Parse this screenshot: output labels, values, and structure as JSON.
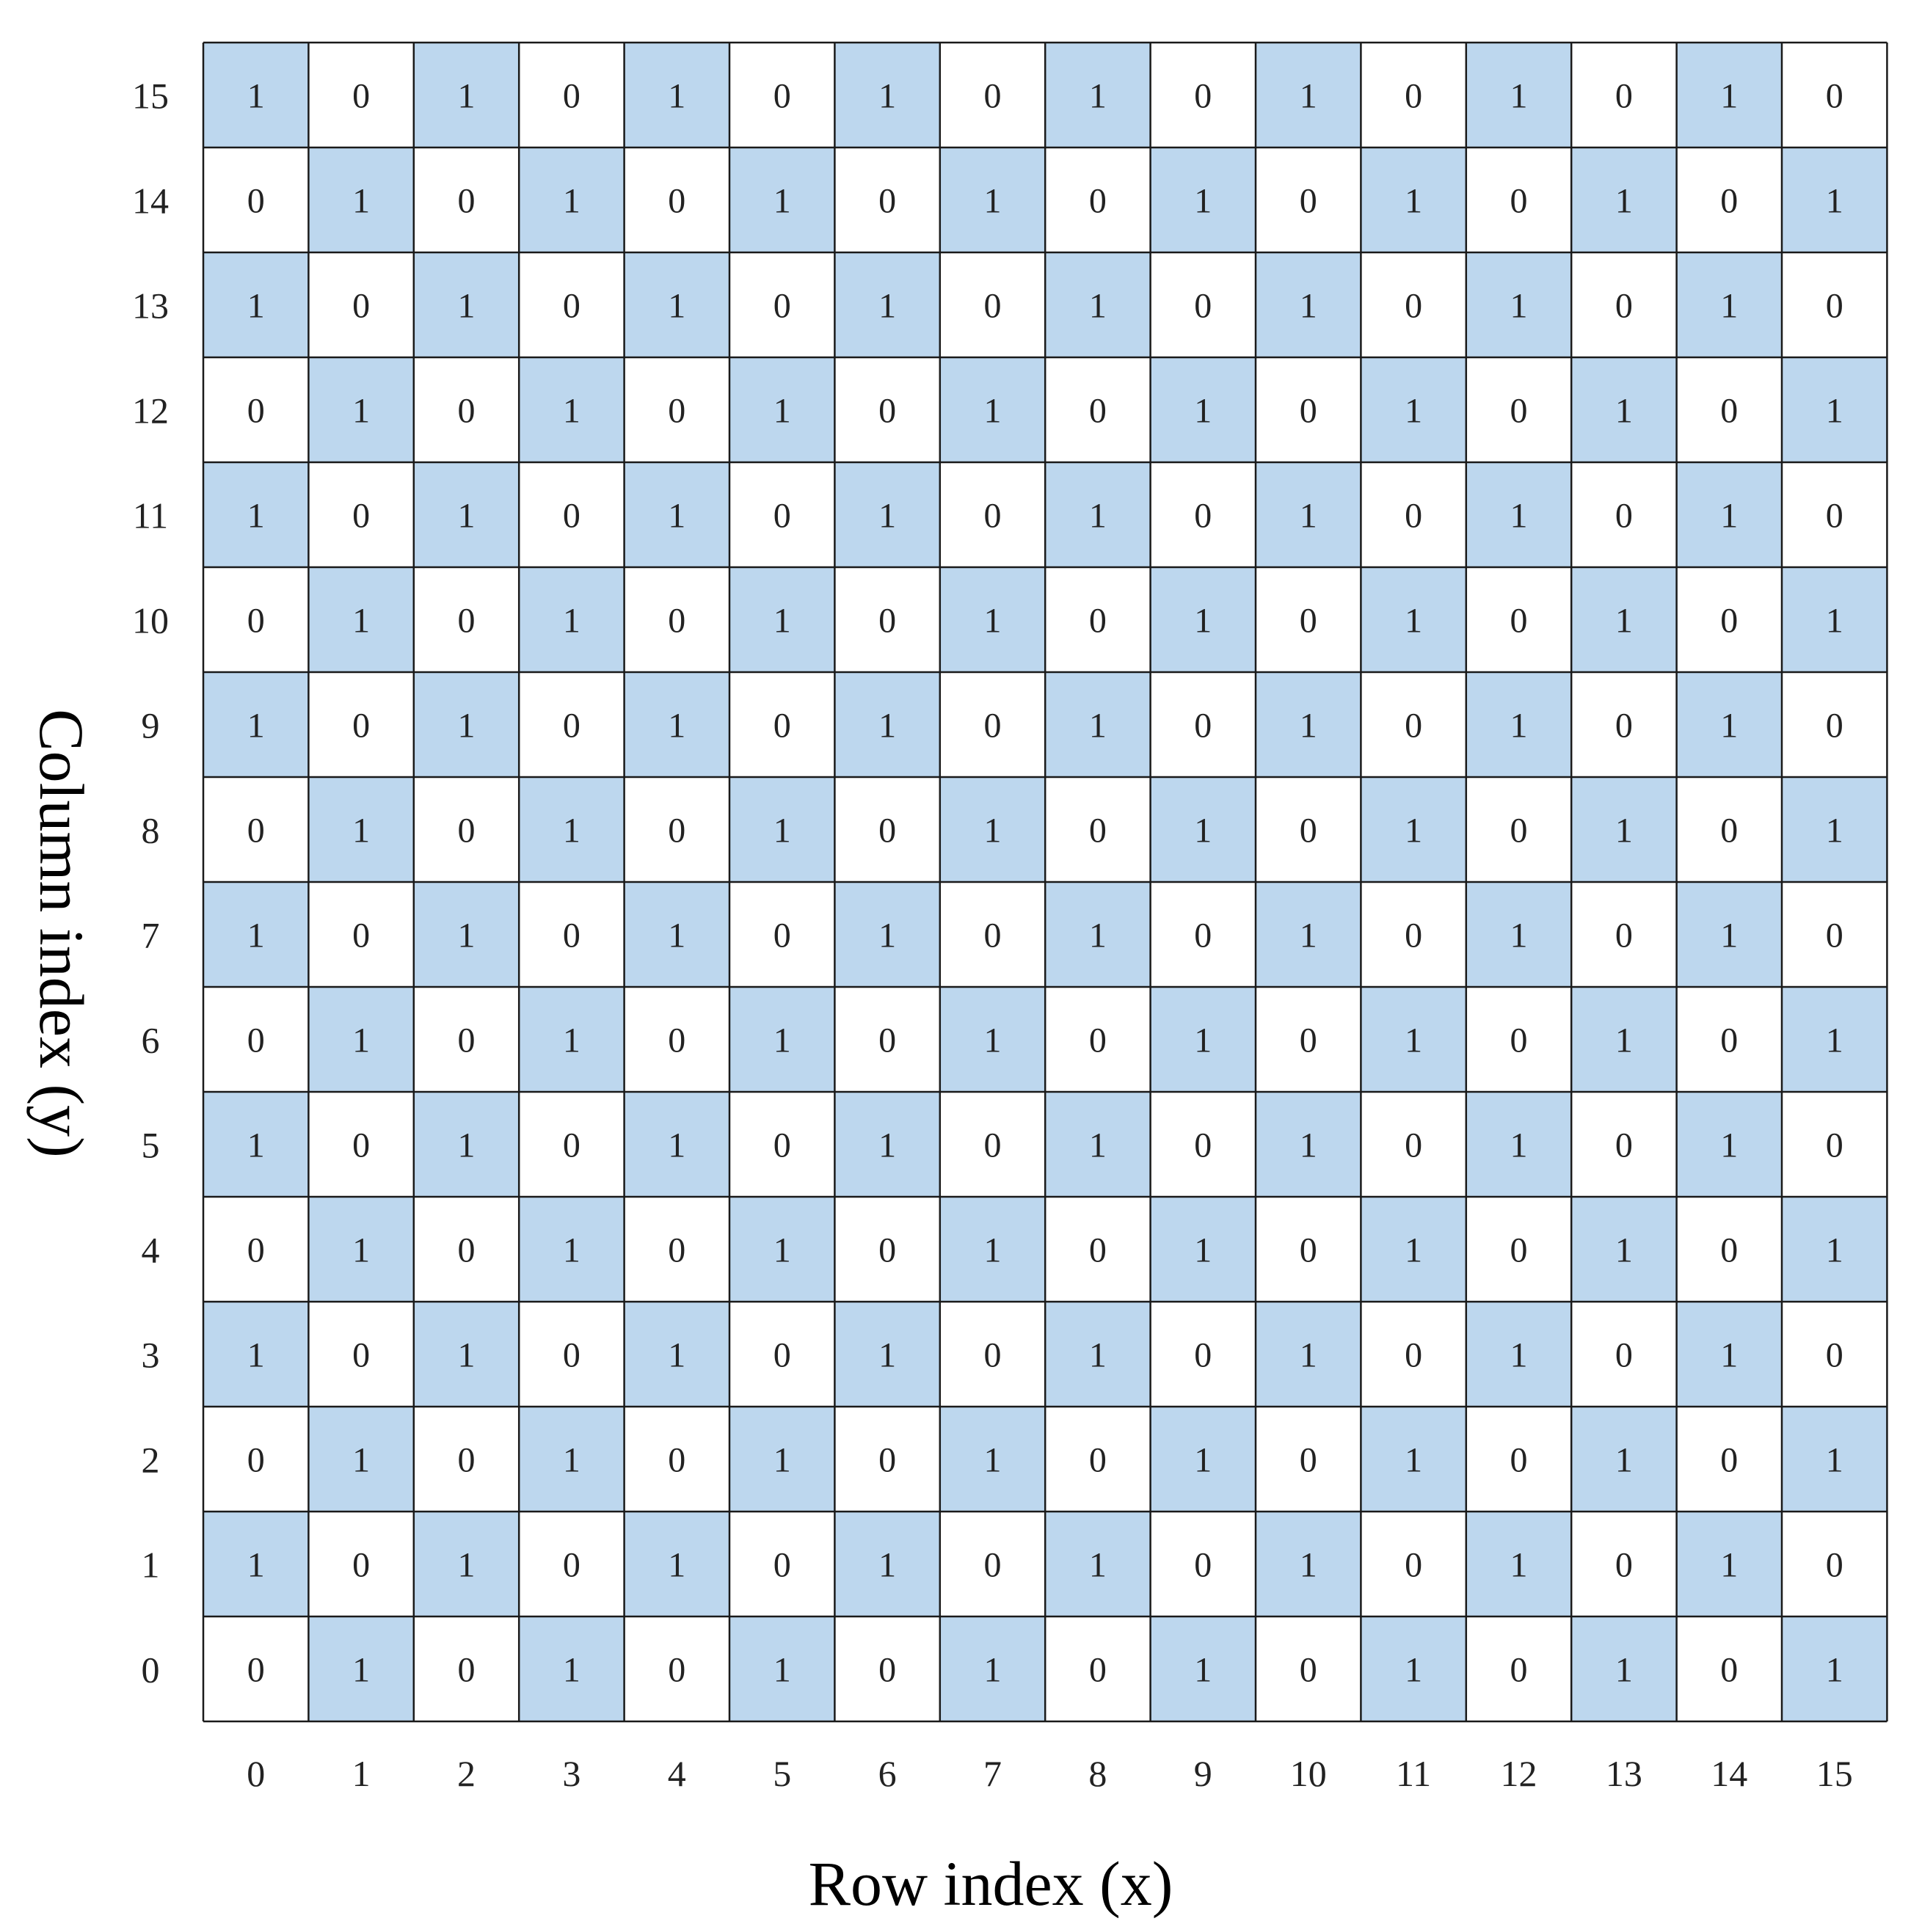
{
  "chart_data": {
    "type": "heatmap",
    "title": "",
    "xlabel": "Row index (x)",
    "ylabel": "Column index (y)",
    "x_ticks": [
      "0",
      "1",
      "2",
      "3",
      "4",
      "5",
      "6",
      "7",
      "8",
      "9",
      "10",
      "11",
      "12",
      "13",
      "14",
      "15"
    ],
    "y_ticks": [
      "0",
      "1",
      "2",
      "3",
      "4",
      "5",
      "6",
      "7",
      "8",
      "9",
      "10",
      "11",
      "12",
      "13",
      "14",
      "15"
    ],
    "grid": true,
    "colors": {
      "one": "#bdd7ee",
      "zero": "#ffffff",
      "grid_line": "#1a1a1a"
    },
    "values_by_y": [
      [
        0,
        1,
        0,
        1,
        0,
        1,
        0,
        1,
        0,
        1,
        0,
        1,
        0,
        1,
        0,
        1
      ],
      [
        1,
        0,
        1,
        0,
        1,
        0,
        1,
        0,
        1,
        0,
        1,
        0,
        1,
        0,
        1,
        0
      ],
      [
        0,
        1,
        0,
        1,
        0,
        1,
        0,
        1,
        0,
        1,
        0,
        1,
        0,
        1,
        0,
        1
      ],
      [
        1,
        0,
        1,
        0,
        1,
        0,
        1,
        0,
        1,
        0,
        1,
        0,
        1,
        0,
        1,
        0
      ],
      [
        0,
        1,
        0,
        1,
        0,
        1,
        0,
        1,
        0,
        1,
        0,
        1,
        0,
        1,
        0,
        1
      ],
      [
        1,
        0,
        1,
        0,
        1,
        0,
        1,
        0,
        1,
        0,
        1,
        0,
        1,
        0,
        1,
        0
      ],
      [
        0,
        1,
        0,
        1,
        0,
        1,
        0,
        1,
        0,
        1,
        0,
        1,
        0,
        1,
        0,
        1
      ],
      [
        1,
        0,
        1,
        0,
        1,
        0,
        1,
        0,
        1,
        0,
        1,
        0,
        1,
        0,
        1,
        0
      ],
      [
        0,
        1,
        0,
        1,
        0,
        1,
        0,
        1,
        0,
        1,
        0,
        1,
        0,
        1,
        0,
        1
      ],
      [
        1,
        0,
        1,
        0,
        1,
        0,
        1,
        0,
        1,
        0,
        1,
        0,
        1,
        0,
        1,
        0
      ],
      [
        0,
        1,
        0,
        1,
        0,
        1,
        0,
        1,
        0,
        1,
        0,
        1,
        0,
        1,
        0,
        1
      ],
      [
        1,
        0,
        1,
        0,
        1,
        0,
        1,
        0,
        1,
        0,
        1,
        0,
        1,
        0,
        1,
        0
      ],
      [
        0,
        1,
        0,
        1,
        0,
        1,
        0,
        1,
        0,
        1,
        0,
        1,
        0,
        1,
        0,
        1
      ],
      [
        1,
        0,
        1,
        0,
        1,
        0,
        1,
        0,
        1,
        0,
        1,
        0,
        1,
        0,
        1,
        0
      ],
      [
        0,
        1,
        0,
        1,
        0,
        1,
        0,
        1,
        0,
        1,
        0,
        1,
        0,
        1,
        0,
        1
      ],
      [
        1,
        0,
        1,
        0,
        1,
        0,
        1,
        0,
        1,
        0,
        1,
        0,
        1,
        0,
        1,
        0
      ]
    ]
  }
}
